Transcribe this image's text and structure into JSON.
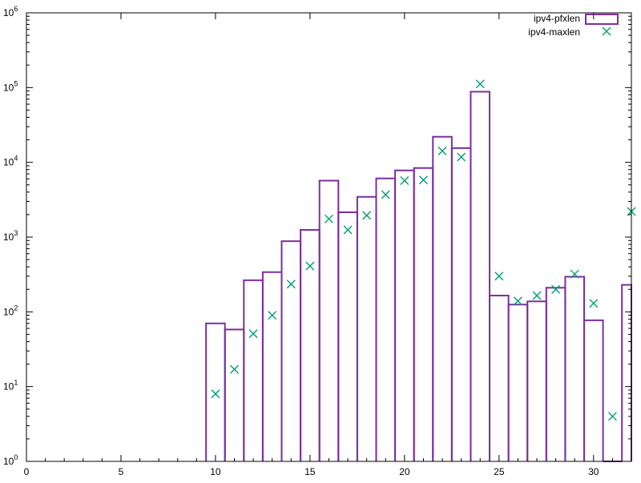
{
  "chart_data": {
    "type": "bar",
    "title": "",
    "xlabel": "",
    "ylabel": "",
    "xlim": [
      0,
      32
    ],
    "ylim": [
      1,
      1000000
    ],
    "yscale": "log",
    "grid": false,
    "legend_position": "top-right",
    "x_ticks": [
      "0",
      "5",
      "10",
      "15",
      "20",
      "25",
      "30"
    ],
    "y_ticks": [
      {
        "base": "10",
        "exp": "0"
      },
      {
        "base": "10",
        "exp": "1"
      },
      {
        "base": "10",
        "exp": "2"
      },
      {
        "base": "10",
        "exp": "3"
      },
      {
        "base": "10",
        "exp": "4"
      },
      {
        "base": "10",
        "exp": "5"
      },
      {
        "base": "10",
        "exp": "6"
      }
    ],
    "series": [
      {
        "name": "ipv4-pfxlen",
        "type": "bar",
        "color": "#7b2fa0",
        "x": [
          10,
          11,
          12,
          13,
          14,
          15,
          16,
          17,
          18,
          19,
          20,
          21,
          22,
          23,
          24,
          25,
          26,
          27,
          28,
          29,
          30,
          31,
          32
        ],
        "values": [
          70,
          58,
          265,
          340,
          880,
          1250,
          5700,
          2150,
          3450,
          6100,
          7800,
          8400,
          22000,
          15500,
          88000,
          165,
          125,
          138,
          210,
          295,
          77,
          1,
          230
        ]
      },
      {
        "name": "ipv4-maxlen",
        "type": "scatter",
        "color": "#009e73",
        "x": [
          10,
          11,
          12,
          13,
          14,
          15,
          16,
          17,
          18,
          19,
          20,
          21,
          22,
          23,
          24,
          25,
          26,
          27,
          28,
          29,
          30,
          31,
          32
        ],
        "values": [
          8,
          17,
          51,
          90,
          235,
          410,
          1750,
          1250,
          1950,
          3700,
          5700,
          5800,
          14200,
          11800,
          112000,
          300,
          140,
          165,
          200,
          320,
          130,
          4,
          2200
        ]
      }
    ]
  }
}
